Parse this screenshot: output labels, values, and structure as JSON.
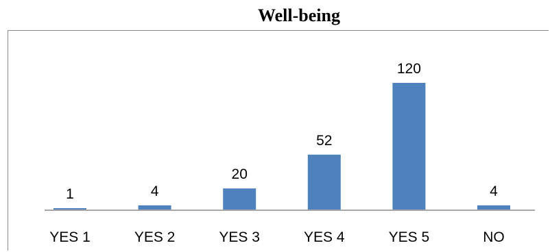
{
  "chart_data": {
    "type": "bar",
    "title": "Well-being",
    "xlabel": "",
    "ylabel": "",
    "categories": [
      "YES 1",
      "YES 2",
      "YES 3",
      "YES 4",
      "YES 5",
      "NO"
    ],
    "values": [
      1,
      4,
      20,
      52,
      120,
      4
    ],
    "data_labels": [
      "1",
      "4",
      "20",
      "52",
      "120",
      "4"
    ],
    "ylim": [
      0,
      120
    ],
    "bar_color": "#4F81BD",
    "axis_color": "#8a8a8a",
    "grid": false,
    "legend": "none"
  }
}
